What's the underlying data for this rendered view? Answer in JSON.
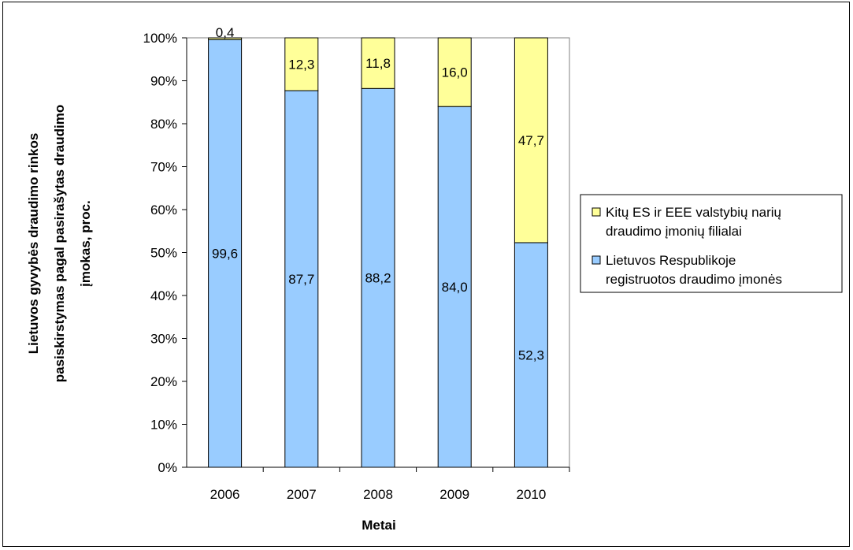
{
  "chart_data": {
    "type": "bar",
    "stacked": "percent",
    "categories": [
      "2006",
      "2007",
      "2008",
      "2009",
      "2010"
    ],
    "series": [
      {
        "name": "Lietuvos Respublikoje registruotos draudimo įmonės",
        "legend_lines": [
          "Lietuvos Respublikoje",
          "registruotos draudimo įmonės"
        ],
        "color": "#99CCFF",
        "values": [
          99.6,
          87.7,
          88.2,
          84.0,
          52.3
        ],
        "labels": [
          "99,6",
          "87,7",
          "88,2",
          "84,0",
          "52,3"
        ]
      },
      {
        "name": "Kitų ES ir EEE valstybių narių draudimo įmonių filialai",
        "legend_lines": [
          "Kitų ES ir EEE valstybių narių",
          "draudimo įmonių filialai"
        ],
        "color": "#FFFF99",
        "values": [
          0.4,
          12.3,
          11.8,
          16.0,
          47.7
        ],
        "labels": [
          "0,4",
          "12,3",
          "11,8",
          "16,0",
          "47,7"
        ]
      }
    ],
    "ylim": [
      0,
      100
    ],
    "y_ticks": [
      "0%",
      "10%",
      "20%",
      "30%",
      "40%",
      "50%",
      "60%",
      "70%",
      "80%",
      "90%",
      "100%"
    ],
    "xlabel": "Metai",
    "ylabel_lines": [
      "Lietuvos gyvybės draudimo rinkos",
      "pasiskirstymas pagal pasirašytas draudimo",
      "įmokas, proc."
    ],
    "legend_position": "right",
    "grid": false
  }
}
